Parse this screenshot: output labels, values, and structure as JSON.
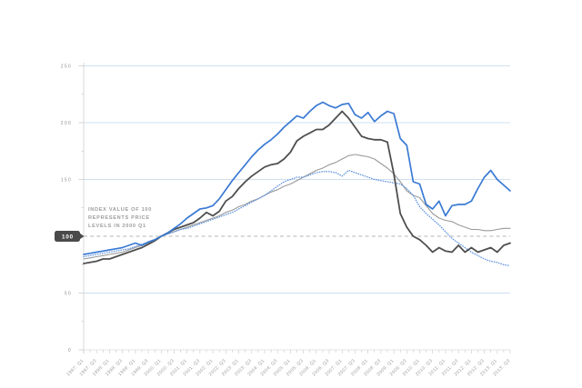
{
  "annotation": {
    "line1": "INDEX VALUE OF 100",
    "line2": "REPRESENTS PRICE",
    "line3": "LEVELS IN 2000 Q1"
  },
  "chart_data": {
    "type": "line",
    "title": "",
    "xlabel": "",
    "ylabel": "",
    "ylim": [
      0,
      250
    ],
    "grid": true,
    "legend": "none",
    "reference_badge": "100",
    "reference_value": 100,
    "colors": {
      "grid_blue": "#cfe0f0",
      "dashed_gray": "#b5b5b5",
      "axis": "#d5d5d5",
      "tick": "#c4c4c4",
      "label_gray": "#9b9b9b",
      "badge_bg": "#4a4a4a",
      "badge_text": "#ffffff"
    },
    "y_axis": {
      "ticks": [
        {
          "value": 0,
          "label": "0"
        },
        {
          "value": 50,
          "label": "50"
        },
        {
          "value": 100,
          "label": "100",
          "badge": true
        },
        {
          "value": 150,
          "label": "150"
        },
        {
          "value": 200,
          "label": "200"
        },
        {
          "value": 250,
          "label": "250"
        }
      ],
      "gridlines_solid": [
        50,
        150,
        200,
        250
      ],
      "gridline_dashed": 100,
      "minor_tick_step": 25
    },
    "x_labels": [
      "1997: Q1",
      "1997: Q3",
      "1998: Q1",
      "1998: Q3",
      "1999: Q1",
      "1999: Q3",
      "2000: Q1",
      "2000: Q3",
      "2001: Q1",
      "2001: Q3",
      "2002: Q1",
      "2002: Q3",
      "2003: Q1",
      "2003: Q3",
      "2004: Q1",
      "2004: Q3",
      "2005: Q1",
      "2005: Q3",
      "2006: Q1",
      "2006: Q3",
      "2007: Q1",
      "2007: Q3",
      "2008: Q1",
      "2008: Q3",
      "2009: Q1",
      "2009: Q3",
      "2010: Q1",
      "2010: Q3",
      "2011: Q1",
      "2011: Q3",
      "2012: Q1",
      "2012: Q3",
      "2013: Q1",
      "2013: Q3"
    ],
    "quarters_per_label": 2,
    "total_points": 67,
    "series": [
      {
        "name": "series-gray",
        "color": "#9a9a9a",
        "style": "solid",
        "width": 1.1,
        "values": [
          80,
          81,
          82,
          83,
          84,
          85,
          86,
          88,
          90,
          92,
          94,
          97,
          100,
          102,
          104,
          106,
          108,
          110,
          112,
          114,
          116,
          118,
          121,
          123,
          126,
          128,
          131,
          133,
          136,
          139,
          141,
          144,
          146,
          149,
          152,
          155,
          158,
          160,
          163,
          165,
          168,
          171,
          172,
          171,
          170,
          168,
          164,
          160,
          155,
          148,
          140,
          136,
          134,
          127,
          120,
          116,
          114,
          113,
          110,
          108,
          106,
          106,
          105,
          105,
          106,
          107,
          107
        ]
      },
      {
        "name": "series-blue-dotted",
        "color": "#5f93dd",
        "style": "dotted",
        "width": 1.3,
        "values": [
          82,
          83,
          84,
          85,
          86,
          87,
          88,
          89,
          91,
          93,
          95,
          97,
          100,
          102,
          104,
          106,
          107,
          109,
          111,
          113,
          115,
          117,
          119,
          121,
          124,
          127,
          130,
          133,
          136,
          140,
          144,
          148,
          150,
          152,
          152,
          154,
          156,
          157,
          157,
          156,
          153,
          158,
          156,
          154,
          152,
          150,
          149,
          148,
          147,
          146,
          142,
          136,
          126,
          120,
          115,
          110,
          104,
          98,
          94,
          90,
          86,
          83,
          80,
          78,
          77,
          75,
          74
        ]
      },
      {
        "name": "series-dark-gray",
        "color": "#4f4f4f",
        "style": "solid",
        "width": 1.8,
        "values": [
          76,
          77,
          78,
          80,
          80,
          82,
          84,
          86,
          88,
          90,
          93,
          96,
          100,
          103,
          106,
          108,
          110,
          112,
          116,
          121,
          118,
          122,
          131,
          135,
          142,
          148,
          153,
          157,
          161,
          163,
          164,
          168,
          174,
          184,
          188,
          191,
          194,
          194,
          198,
          204,
          210,
          204,
          196,
          188,
          186,
          185,
          185,
          183,
          155,
          120,
          108,
          100,
          97,
          92,
          86,
          90,
          87,
          86,
          92,
          86,
          90,
          86,
          88,
          90,
          86,
          92,
          94
        ]
      },
      {
        "name": "series-blue-solid",
        "color": "#3a7ad4",
        "style": "solid",
        "width": 1.7,
        "values": [
          84,
          85,
          86,
          87,
          88,
          89,
          90,
          92,
          94,
          92,
          95,
          97,
          100,
          103,
          107,
          111,
          116,
          120,
          124,
          125,
          127,
          133,
          141,
          149,
          156,
          163,
          170,
          176,
          181,
          185,
          190,
          196,
          201,
          206,
          204,
          210,
          215,
          218,
          215,
          213,
          216,
          217,
          207,
          204,
          209,
          201,
          206,
          210,
          208,
          186,
          180,
          148,
          146,
          128,
          124,
          131,
          118,
          127,
          128,
          128,
          131,
          142,
          152,
          158,
          150,
          145,
          140
        ]
      }
    ]
  }
}
